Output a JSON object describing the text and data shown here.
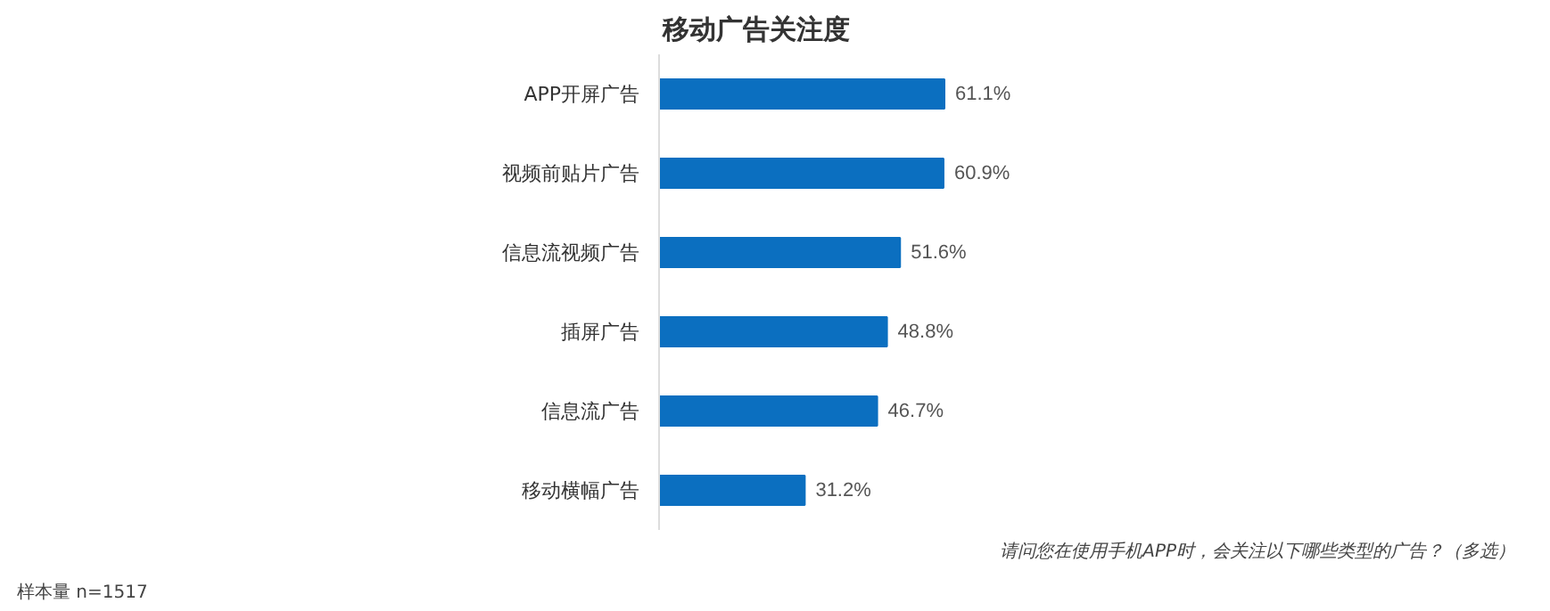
{
  "chart_data": {
    "type": "bar",
    "orientation": "horizontal",
    "title": "移动广告关注度",
    "categories": [
      "APP开屏广告",
      "视频前贴片广告",
      "信息流视频广告",
      "插屏广告",
      "信息流广告",
      "移动横幅广告"
    ],
    "values": [
      61.1,
      60.9,
      51.6,
      48.8,
      46.7,
      31.2
    ],
    "value_labels": [
      "61.1%",
      "60.9%",
      "51.6%",
      "48.8%",
      "46.7%",
      "31.2%"
    ],
    "color": "#0b6fc0",
    "grid": false,
    "annotations": [
      "请问您在使用手机APP时，会关注以下哪些类型的广告？（多选）",
      "样本量 n=1517"
    ]
  }
}
